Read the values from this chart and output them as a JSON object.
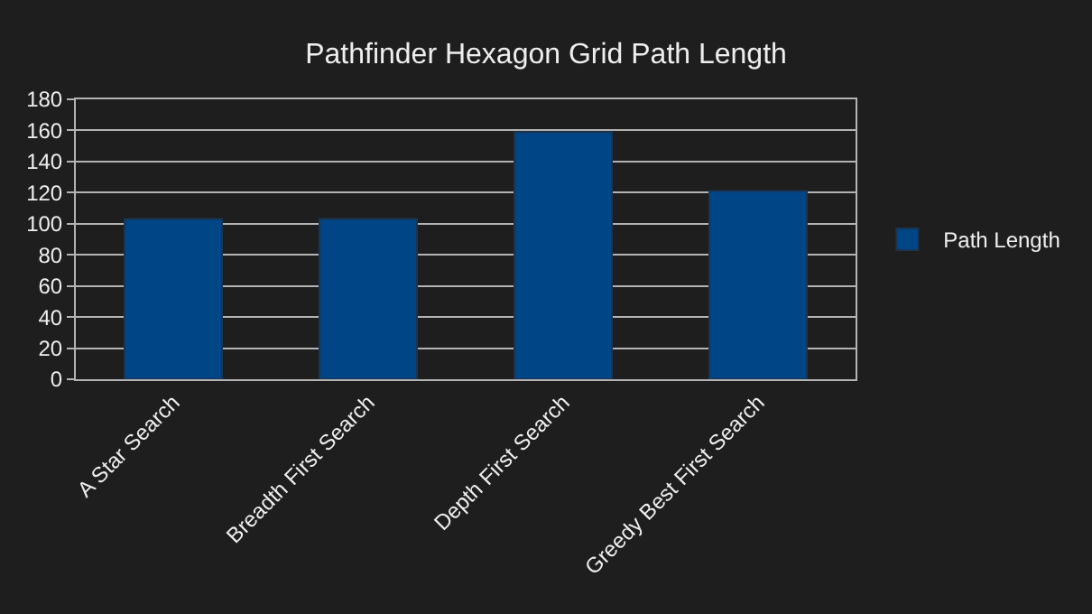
{
  "chart_data": {
    "type": "bar",
    "title": "Pathfinder Hexagon Grid Path Length",
    "categories": [
      "A Star Search",
      "Breadth First Search",
      "Depth First Search",
      "Greedy Best First Search"
    ],
    "series": [
      {
        "name": "Path Length",
        "color": "#004586",
        "values": [
          103,
          103,
          159,
          121
        ]
      }
    ],
    "ylim": [
      0,
      180
    ],
    "yticks": [
      0,
      20,
      40,
      60,
      80,
      100,
      120,
      140,
      160,
      180
    ],
    "grid": "y",
    "legend": "right"
  }
}
